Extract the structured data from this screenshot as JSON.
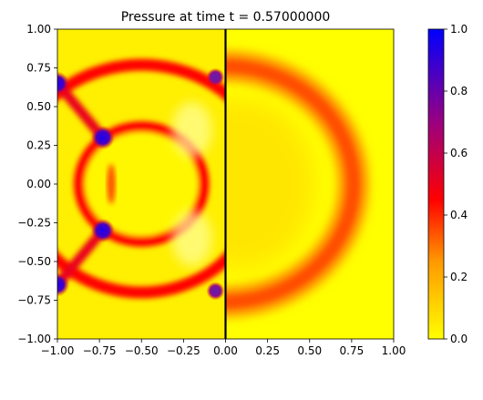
{
  "chart_data": {
    "type": "heatmap",
    "title": "Pressure at time t =     0.57000000",
    "xlabel": "",
    "ylabel": "",
    "xlim": [
      -1.0,
      1.0
    ],
    "ylim": [
      -1.0,
      1.0
    ],
    "x_ticks": [
      "−1.00",
      "−0.75",
      "−0.50",
      "−0.25",
      "0.00",
      "0.25",
      "0.50",
      "0.75",
      "1.00"
    ],
    "y_ticks": [
      "−1.00",
      "−0.75",
      "−0.50",
      "−0.25",
      "0.00",
      "0.25",
      "0.50",
      "0.75",
      "1.00"
    ],
    "x_tick_values": [
      -1.0,
      -0.75,
      -0.5,
      -0.25,
      0.0,
      0.25,
      0.5,
      0.75,
      1.0
    ],
    "y_tick_values": [
      -1.0,
      -0.75,
      -0.5,
      -0.25,
      0.0,
      0.25,
      0.5,
      0.75,
      1.0
    ],
    "colorbar": {
      "range": [
        0.0,
        1.0
      ],
      "ticks": [
        "0.0",
        "0.2",
        "0.4",
        "0.6",
        "0.8",
        "1.0"
      ],
      "tick_values": [
        0.0,
        0.2,
        0.4,
        0.6,
        0.8,
        1.0
      ],
      "colormap": [
        {
          "value": 0.0,
          "color": "#ffff00"
        },
        {
          "value": 0.25,
          "color": "#ff9900"
        },
        {
          "value": 0.45,
          "color": "#ff0000"
        },
        {
          "value": 0.7,
          "color": "#9a0080"
        },
        {
          "value": 1.0,
          "color": "#0000ff"
        }
      ]
    },
    "features": {
      "vertical_line_x": 0.0,
      "inner_circle": {
        "center": [
          -0.5,
          0.0
        ],
        "radius": 0.37,
        "value": 0.45
      },
      "outer_upper_arc": {
        "center": [
          -0.5,
          0.0
        ],
        "radius": 0.77,
        "value": 0.45
      },
      "outer_lower_arc": {
        "center": [
          -0.5,
          0.0
        ],
        "radius": 0.7,
        "value": 0.45
      },
      "transmitted_wave": {
        "center": [
          0.0,
          0.0
        ],
        "radius": 0.76,
        "value": 0.3
      },
      "inner_ellipse": {
        "center": [
          -0.68,
          0.0
        ],
        "rx": 0.025,
        "ry": 0.13,
        "value": 0.35
      },
      "high_pressure_spots": [
        {
          "x": -1.0,
          "y": 0.65,
          "value": 0.95
        },
        {
          "x": -1.0,
          "y": -0.65,
          "value": 0.95
        },
        {
          "x": -0.73,
          "y": 0.3,
          "value": 0.95
        },
        {
          "x": -0.73,
          "y": -0.3,
          "value": 0.95
        },
        {
          "x": -0.06,
          "y": 0.69,
          "value": 0.75
        },
        {
          "x": -0.06,
          "y": -0.69,
          "value": 0.75
        }
      ]
    }
  }
}
